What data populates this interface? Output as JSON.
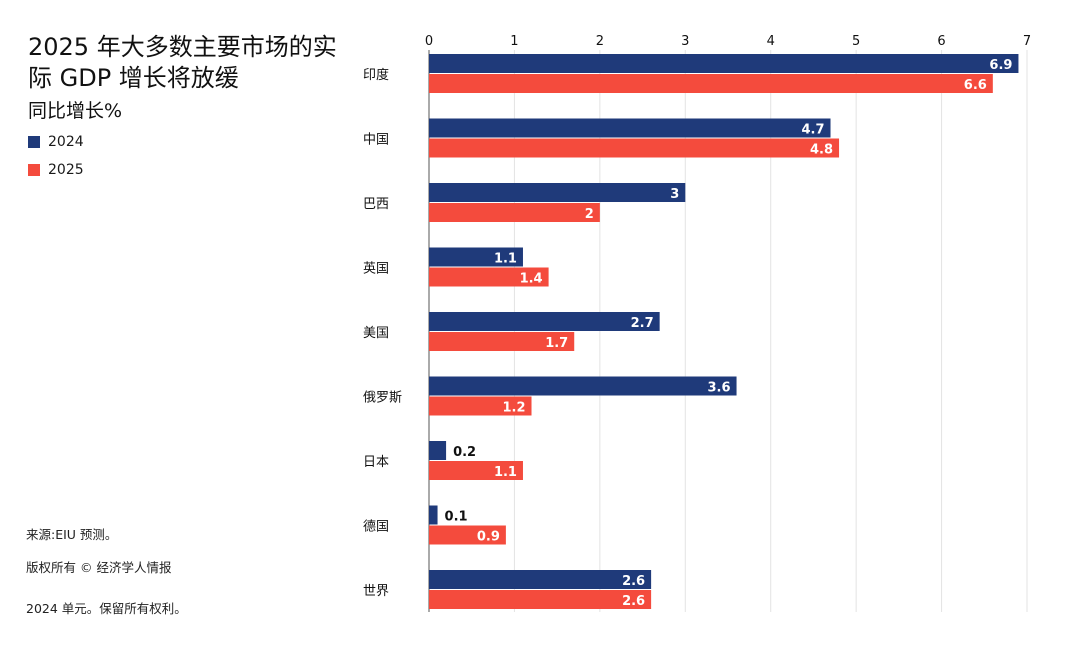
{
  "title": "2025 年大多数主要市场的实际 GDP 增长将放缓",
  "subtitle": "同比增长%",
  "legend": [
    {
      "name": "2024",
      "color": "#1f3a7a"
    },
    {
      "name": "2025",
      "color": "#f44b3d"
    }
  ],
  "footer": {
    "source": "来源:EIU 预测。",
    "copyright": "版权所有 © 经济学人情报",
    "rights": "2024 单元。保留所有权利。"
  },
  "chart_data": {
    "type": "bar",
    "orientation": "horizontal",
    "categories": [
      "印度",
      "中国",
      "巴西",
      "英国",
      "美国",
      "俄罗斯",
      "日本",
      "德国",
      "世界"
    ],
    "series": [
      {
        "name": "2024",
        "color": "#1f3a7a",
        "values": [
          6.9,
          4.7,
          3,
          1.1,
          2.7,
          3.6,
          0.2,
          0.1,
          2.6
        ]
      },
      {
        "name": "2025",
        "color": "#f44b3d",
        "values": [
          6.6,
          4.8,
          2,
          1.4,
          1.7,
          1.2,
          1.1,
          0.9,
          2.6
        ]
      }
    ],
    "xlim": [
      0,
      7
    ],
    "ticks": [
      0,
      1,
      2,
      3,
      4,
      5,
      6,
      7
    ],
    "grid": true,
    "axis_position": "top",
    "legend_placement": "top-left"
  }
}
